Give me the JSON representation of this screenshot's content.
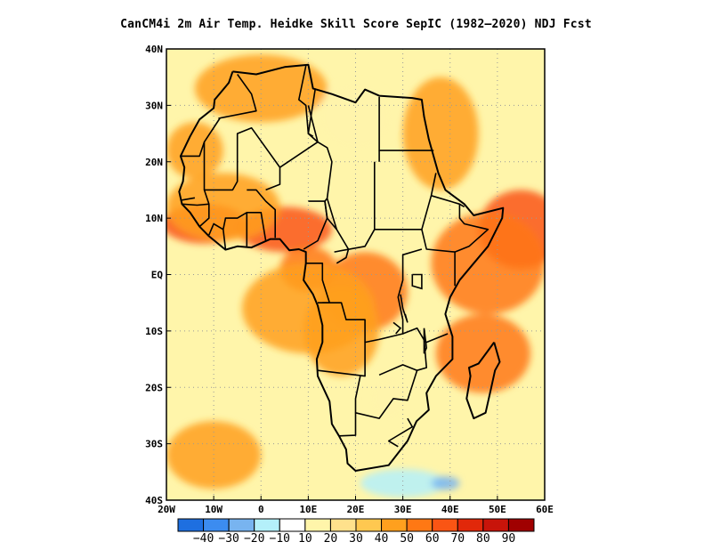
{
  "title": "CanCM4i  2m Air Temp. Heidke Skill Score SepIC (1982–2020) NDJ Fcst",
  "map": {
    "lon_range": [
      -20,
      60
    ],
    "lat_range": [
      -40,
      40
    ],
    "x_ticks": [
      {
        "value": -20,
        "label": "20W"
      },
      {
        "value": -10,
        "label": "10W"
      },
      {
        "value": 0,
        "label": "0"
      },
      {
        "value": 10,
        "label": "10E"
      },
      {
        "value": 20,
        "label": "20E"
      },
      {
        "value": 30,
        "label": "30E"
      },
      {
        "value": 40,
        "label": "40E"
      },
      {
        "value": 50,
        "label": "50E"
      },
      {
        "value": 60,
        "label": "60E"
      }
    ],
    "y_ticks": [
      {
        "value": 40,
        "label": "40N"
      },
      {
        "value": 30,
        "label": "30N"
      },
      {
        "value": 20,
        "label": "20N"
      },
      {
        "value": 10,
        "label": "10N"
      },
      {
        "value": 0,
        "label": "EQ"
      },
      {
        "value": -10,
        "label": "10S"
      },
      {
        "value": -20,
        "label": "20S"
      },
      {
        "value": -30,
        "label": "30S"
      },
      {
        "value": -40,
        "label": "40S"
      }
    ],
    "gridlines": "dotted"
  },
  "colorbar": {
    "bins": [
      {
        "color": "#1e6fe0"
      },
      {
        "color": "#3c8cf0"
      },
      {
        "color": "#78b4f0"
      },
      {
        "color": "#b4f0fa"
      },
      {
        "color": "#ffffff"
      },
      {
        "color": "#fff5aa"
      },
      {
        "color": "#ffe18c"
      },
      {
        "color": "#ffc850"
      },
      {
        "color": "#ffa01e"
      },
      {
        "color": "#ff7814"
      },
      {
        "color": "#fa5514"
      },
      {
        "color": "#e1280a"
      },
      {
        "color": "#c8140a"
      },
      {
        "color": "#a00000"
      }
    ],
    "labels": [
      "-40",
      "-30",
      "-20",
      "-10",
      "10",
      "20",
      "30",
      "40",
      "50",
      "60",
      "70",
      "80",
      "90"
    ]
  },
  "field": {
    "background_color": "#fff5aa",
    "blobs": [
      {
        "lon": -12,
        "lat": 9,
        "rx": 9,
        "ry": 3.5,
        "value": 60
      },
      {
        "lon": 5,
        "lat": 8,
        "rx": 10,
        "ry": 4,
        "value": 60
      },
      {
        "lon": -8,
        "lat": 12,
        "rx": 12,
        "ry": 6,
        "value": 45
      },
      {
        "lon": 10,
        "lat": 1,
        "rx": 6,
        "ry": 4,
        "value": 55
      },
      {
        "lon": 22,
        "lat": -3,
        "rx": 9,
        "ry": 7,
        "value": 55
      },
      {
        "lon": 17,
        "lat": -10,
        "rx": 8,
        "ry": 8,
        "value": 45
      },
      {
        "lon": 55,
        "lat": 8,
        "rx": 9,
        "ry": 7,
        "value": 65
      },
      {
        "lon": 48,
        "lat": 2,
        "rx": 12,
        "ry": 9,
        "value": 50
      },
      {
        "lon": 47,
        "lat": -14,
        "rx": 10,
        "ry": 7,
        "value": 55
      },
      {
        "lon": 38,
        "lat": 25,
        "rx": 8,
        "ry": 10,
        "value": 45
      },
      {
        "lon": -14,
        "lat": 22,
        "rx": 6,
        "ry": 5,
        "value": 45
      },
      {
        "lon": -10,
        "lat": -32,
        "rx": 10,
        "ry": 6,
        "value": 40
      },
      {
        "lon": 10,
        "lat": -6,
        "rx": 14,
        "ry": 8,
        "value": 40
      },
      {
        "lon": 0,
        "lat": 33,
        "rx": 14,
        "ry": 6,
        "value": 40
      },
      {
        "lon": 20,
        "lat": 28,
        "rx": 8,
        "ry": 6,
        "value": 10
      },
      {
        "lon": 27,
        "lat": -22,
        "rx": 4,
        "ry": 4,
        "value": 10
      },
      {
        "lon": 30,
        "lat": -37,
        "rx": 9,
        "ry": 2.5,
        "value": -20
      },
      {
        "lon": 39,
        "lat": -37,
        "rx": 3,
        "ry": 1.2,
        "value": -30
      }
    ]
  },
  "coastline": [
    [
      -6,
      36
    ],
    [
      -1,
      35.5
    ],
    [
      5,
      36.8
    ],
    [
      10,
      37.2
    ],
    [
      11,
      33
    ],
    [
      15,
      32
    ],
    [
      20,
      30.5
    ],
    [
      22,
      32.8
    ],
    [
      25,
      31.7
    ],
    [
      32,
      31.3
    ],
    [
      34,
      31
    ],
    [
      34.5,
      28
    ],
    [
      35.5,
      24
    ],
    [
      37.5,
      18
    ],
    [
      39,
      15
    ],
    [
      43,
      12.5
    ],
    [
      45,
      10.5
    ],
    [
      51.2,
      11.8
    ],
    [
      51,
      10
    ],
    [
      48,
      5
    ],
    [
      45,
      2
    ],
    [
      42,
      -1
    ],
    [
      40,
      -4
    ],
    [
      39,
      -7
    ],
    [
      40.5,
      -11
    ],
    [
      40.5,
      -15
    ],
    [
      37,
      -18
    ],
    [
      35,
      -21
    ],
    [
      35.5,
      -24
    ],
    [
      32.9,
      -26
    ],
    [
      31,
      -29.5
    ],
    [
      27,
      -33.8
    ],
    [
      20,
      -34.8
    ],
    [
      18.3,
      -33.5
    ],
    [
      18,
      -31
    ],
    [
      16.5,
      -28.6
    ],
    [
      15,
      -26.5
    ],
    [
      14.5,
      -22.5
    ],
    [
      12,
      -18
    ],
    [
      11.8,
      -15
    ],
    [
      13,
      -12
    ],
    [
      13,
      -9
    ],
    [
      12,
      -5.5
    ],
    [
      11,
      -3.5
    ],
    [
      9,
      -1
    ],
    [
      9.5,
      2
    ],
    [
      9.5,
      4
    ],
    [
      8,
      4.5
    ],
    [
      6,
      4.3
    ],
    [
      4,
      6.3
    ],
    [
      2,
      6.3
    ],
    [
      -2,
      4.8
    ],
    [
      -5,
      5
    ],
    [
      -7.5,
      4.4
    ],
    [
      -11,
      6.8
    ],
    [
      -13,
      8.5
    ],
    [
      -15,
      11
    ],
    [
      -16.7,
      12.5
    ],
    [
      -17.3,
      14.7
    ],
    [
      -16.5,
      16.5
    ],
    [
      -16.2,
      19
    ],
    [
      -17,
      21
    ],
    [
      -15,
      24.5
    ],
    [
      -13,
      27.5
    ],
    [
      -10,
      29.5
    ],
    [
      -9.8,
      31
    ],
    [
      -6.8,
      34
    ],
    [
      -6,
      36
    ]
  ],
  "madagascar": [
    [
      49.3,
      -12
    ],
    [
      50.5,
      -15.5
    ],
    [
      49.5,
      -17
    ],
    [
      48.7,
      -20
    ],
    [
      47.5,
      -24.5
    ],
    [
      45,
      -25.5
    ],
    [
      43.5,
      -22
    ],
    [
      44.3,
      -18
    ],
    [
      44,
      -16.5
    ],
    [
      46,
      -15.8
    ],
    [
      48,
      -13.5
    ],
    [
      49.3,
      -12
    ]
  ],
  "borders": [
    [
      [
        -5,
        35.5
      ],
      [
        -2,
        32
      ],
      [
        -1,
        29
      ],
      [
        -9,
        27.7
      ]
    ],
    [
      [
        -8.7,
        27.7
      ],
      [
        -12,
        23.5
      ],
      [
        -13,
        21
      ],
      [
        -17,
        21
      ]
    ],
    [
      [
        -12,
        23.5
      ],
      [
        -12,
        15
      ],
      [
        -6,
        15
      ],
      [
        -5,
        16.5
      ],
      [
        -5,
        25
      ],
      [
        -2,
        26
      ],
      [
        4,
        19
      ],
      [
        4,
        16
      ],
      [
        1,
        15
      ]
    ],
    [
      [
        4,
        19
      ],
      [
        12,
        23.5
      ],
      [
        14,
        22.5
      ],
      [
        15,
        20
      ],
      [
        14,
        13.5
      ],
      [
        16,
        8
      ]
    ],
    [
      [
        9.5,
        37
      ],
      [
        8,
        31
      ],
      [
        9.5,
        30
      ],
      [
        10,
        25
      ],
      [
        12,
        23.5
      ],
      [
        10,
        30
      ]
    ],
    [
      [
        11.5,
        33
      ],
      [
        10,
        25
      ],
      [
        11,
        24.5
      ]
    ],
    [
      [
        24,
        20
      ],
      [
        24,
        8
      ],
      [
        22,
        5
      ],
      [
        15.5,
        4
      ]
    ],
    [
      [
        25,
        31.5
      ],
      [
        25,
        22
      ],
      [
        36.5,
        22
      ]
    ],
    [
      [
        25,
        20
      ],
      [
        25,
        22
      ]
    ],
    [
      [
        24,
        8
      ],
      [
        34,
        8
      ],
      [
        36,
        14
      ],
      [
        37,
        18
      ]
    ],
    [
      [
        36,
        14
      ],
      [
        42,
        12.5
      ],
      [
        43,
        12
      ]
    ],
    [
      [
        42,
        12.5
      ],
      [
        42,
        10
      ],
      [
        43,
        9
      ],
      [
        48,
        8
      ],
      [
        44,
        5
      ],
      [
        41,
        4
      ],
      [
        35,
        4.5
      ],
      [
        34,
        8
      ]
    ],
    [
      [
        41,
        4
      ],
      [
        41,
        -2
      ]
    ],
    [
      [
        34,
        4.5
      ],
      [
        30,
        3.5
      ],
      [
        30,
        -1
      ],
      [
        29,
        -4
      ],
      [
        30,
        -8
      ],
      [
        30,
        -10.5
      ],
      [
        25,
        -11.5
      ],
      [
        22,
        -12
      ],
      [
        22,
        -18
      ],
      [
        12,
        -17
      ]
    ],
    [
      [
        30,
        -10.5
      ],
      [
        33,
        -9.5
      ],
      [
        34.5,
        -11.6
      ],
      [
        35,
        -16.5
      ],
      [
        33,
        -17
      ],
      [
        31,
        -22.3
      ],
      [
        28,
        -22
      ],
      [
        25,
        -25.5
      ],
      [
        20,
        -24.5
      ],
      [
        20,
        -22
      ],
      [
        21,
        -18
      ]
    ],
    [
      [
        39.5,
        -10.5
      ],
      [
        35,
        -12
      ],
      [
        34.5,
        -11.6
      ]
    ],
    [
      [
        33,
        -17
      ],
      [
        30,
        -16
      ],
      [
        25,
        -17.8
      ]
    ],
    [
      [
        20,
        -24.5
      ],
      [
        20,
        -28.5
      ],
      [
        16.5,
        -28.6
      ]
    ],
    [
      [
        31,
        -25.5
      ],
      [
        32,
        -27
      ],
      [
        27,
        -29.5
      ],
      [
        29,
        -30.5
      ]
    ],
    [
      [
        13,
        -5
      ],
      [
        17,
        -5
      ],
      [
        18,
        -8
      ],
      [
        22,
        -8
      ],
      [
        22,
        -12
      ]
    ],
    [
      [
        9.5,
        2
      ],
      [
        11,
        2
      ],
      [
        13,
        2
      ],
      [
        13,
        -1
      ],
      [
        14.5,
        -5
      ],
      [
        12,
        -5
      ]
    ],
    [
      [
        16,
        2
      ],
      [
        18,
        3
      ],
      [
        18.5,
        4.5
      ],
      [
        16,
        8
      ],
      [
        14,
        10
      ],
      [
        13.5,
        13
      ],
      [
        14,
        13.5
      ]
    ],
    [
      [
        9,
        4.5
      ],
      [
        12,
        6
      ],
      [
        14,
        10
      ],
      [
        13.5,
        13
      ],
      [
        10,
        13
      ]
    ],
    [
      [
        3,
        6.5
      ],
      [
        3,
        11.5
      ],
      [
        1,
        13
      ],
      [
        -1,
        15
      ],
      [
        -3,
        15
      ]
    ],
    [
      [
        1,
        6
      ],
      [
        0,
        11
      ],
      [
        -3,
        11
      ],
      [
        -5,
        10
      ],
      [
        -7.5,
        10
      ],
      [
        -8,
        8
      ],
      [
        -7.5,
        4.5
      ]
    ],
    [
      [
        -3,
        5
      ],
      [
        -3,
        11
      ]
    ],
    [
      [
        -11,
        7
      ],
      [
        -10,
        9
      ],
      [
        -8,
        8
      ]
    ],
    [
      [
        -13,
        8.5
      ],
      [
        -11,
        10
      ],
      [
        -11,
        12.5
      ],
      [
        -13.5,
        12.3
      ],
      [
        -16.7,
        12.5
      ]
    ],
    [
      [
        -11,
        12.5
      ],
      [
        -12,
        15
      ]
    ],
    [
      [
        -16.7,
        13.2
      ],
      [
        -14,
        13.6
      ]
    ]
  ],
  "lakes": [
    [
      [
        32,
        0
      ],
      [
        34,
        0
      ],
      [
        34,
        -2.5
      ],
      [
        32,
        -2
      ],
      [
        32,
        0
      ]
    ],
    [
      [
        29.5,
        -3.5
      ],
      [
        30,
        -6
      ],
      [
        31,
        -8.5
      ],
      [
        30.5,
        -7
      ]
    ],
    [
      [
        34.5,
        -9.5
      ],
      [
        34.5,
        -14
      ],
      [
        35,
        -13
      ],
      [
        34.5,
        -9.5
      ]
    ],
    [
      [
        28,
        -8.5
      ],
      [
        29.5,
        -9.5
      ],
      [
        28.5,
        -10.5
      ]
    ]
  ]
}
